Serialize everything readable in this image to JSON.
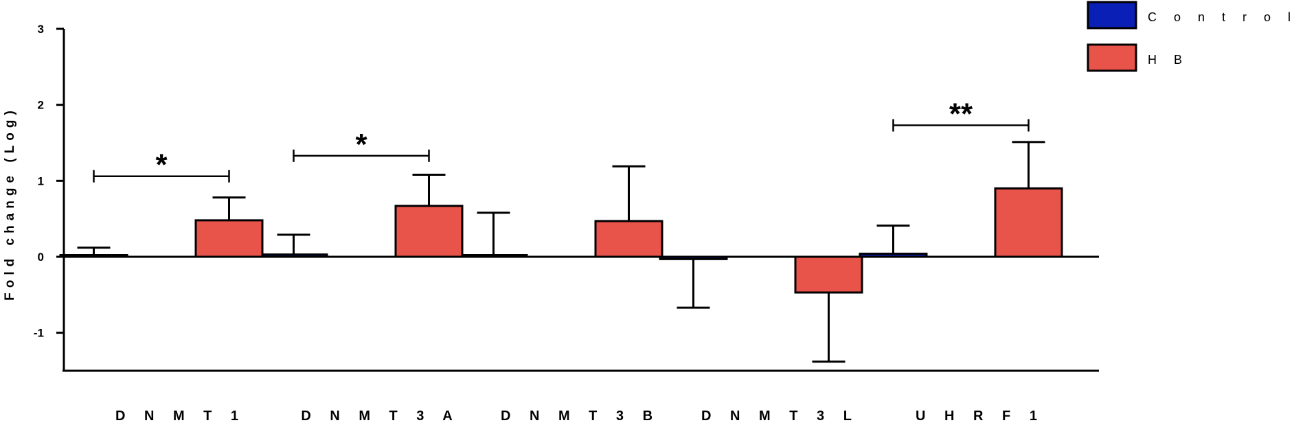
{
  "chart_data": {
    "type": "bar",
    "ylabel": "Fold change (Log)",
    "xlabel": "",
    "ylim": [
      -1.5,
      3
    ],
    "yticks": [
      3,
      2,
      1,
      0,
      -1
    ],
    "ytick_labels": [
      "3",
      "2",
      "1",
      "0",
      "-1"
    ],
    "categories": [
      "D N M T 1",
      "D N M T 3 A",
      "D N M T 3 B",
      "D N M T 3 L",
      "U H R F 1"
    ],
    "series": [
      {
        "name": "C o n t r o l  L i v e r",
        "color": "#0a1fb5",
        "values": [
          0.02,
          0.03,
          0.01,
          -0.03,
          0.04
        ],
        "errors": [
          0.1,
          0.26,
          0.57,
          0.64,
          0.37
        ]
      },
      {
        "name": "H B",
        "color": "#e8534a",
        "values": [
          0.48,
          0.67,
          0.47,
          -0.47,
          0.9
        ],
        "errors": [
          0.3,
          0.41,
          0.72,
          0.91,
          0.61
        ]
      }
    ],
    "significance": [
      {
        "category_index": 0,
        "label": "*",
        "y": 1.06
      },
      {
        "category_index": 1,
        "label": "*",
        "y": 1.33
      },
      {
        "category_index": 4,
        "label": "**",
        "y": 1.73
      }
    ],
    "legend_position": "top-right",
    "grid": false
  }
}
